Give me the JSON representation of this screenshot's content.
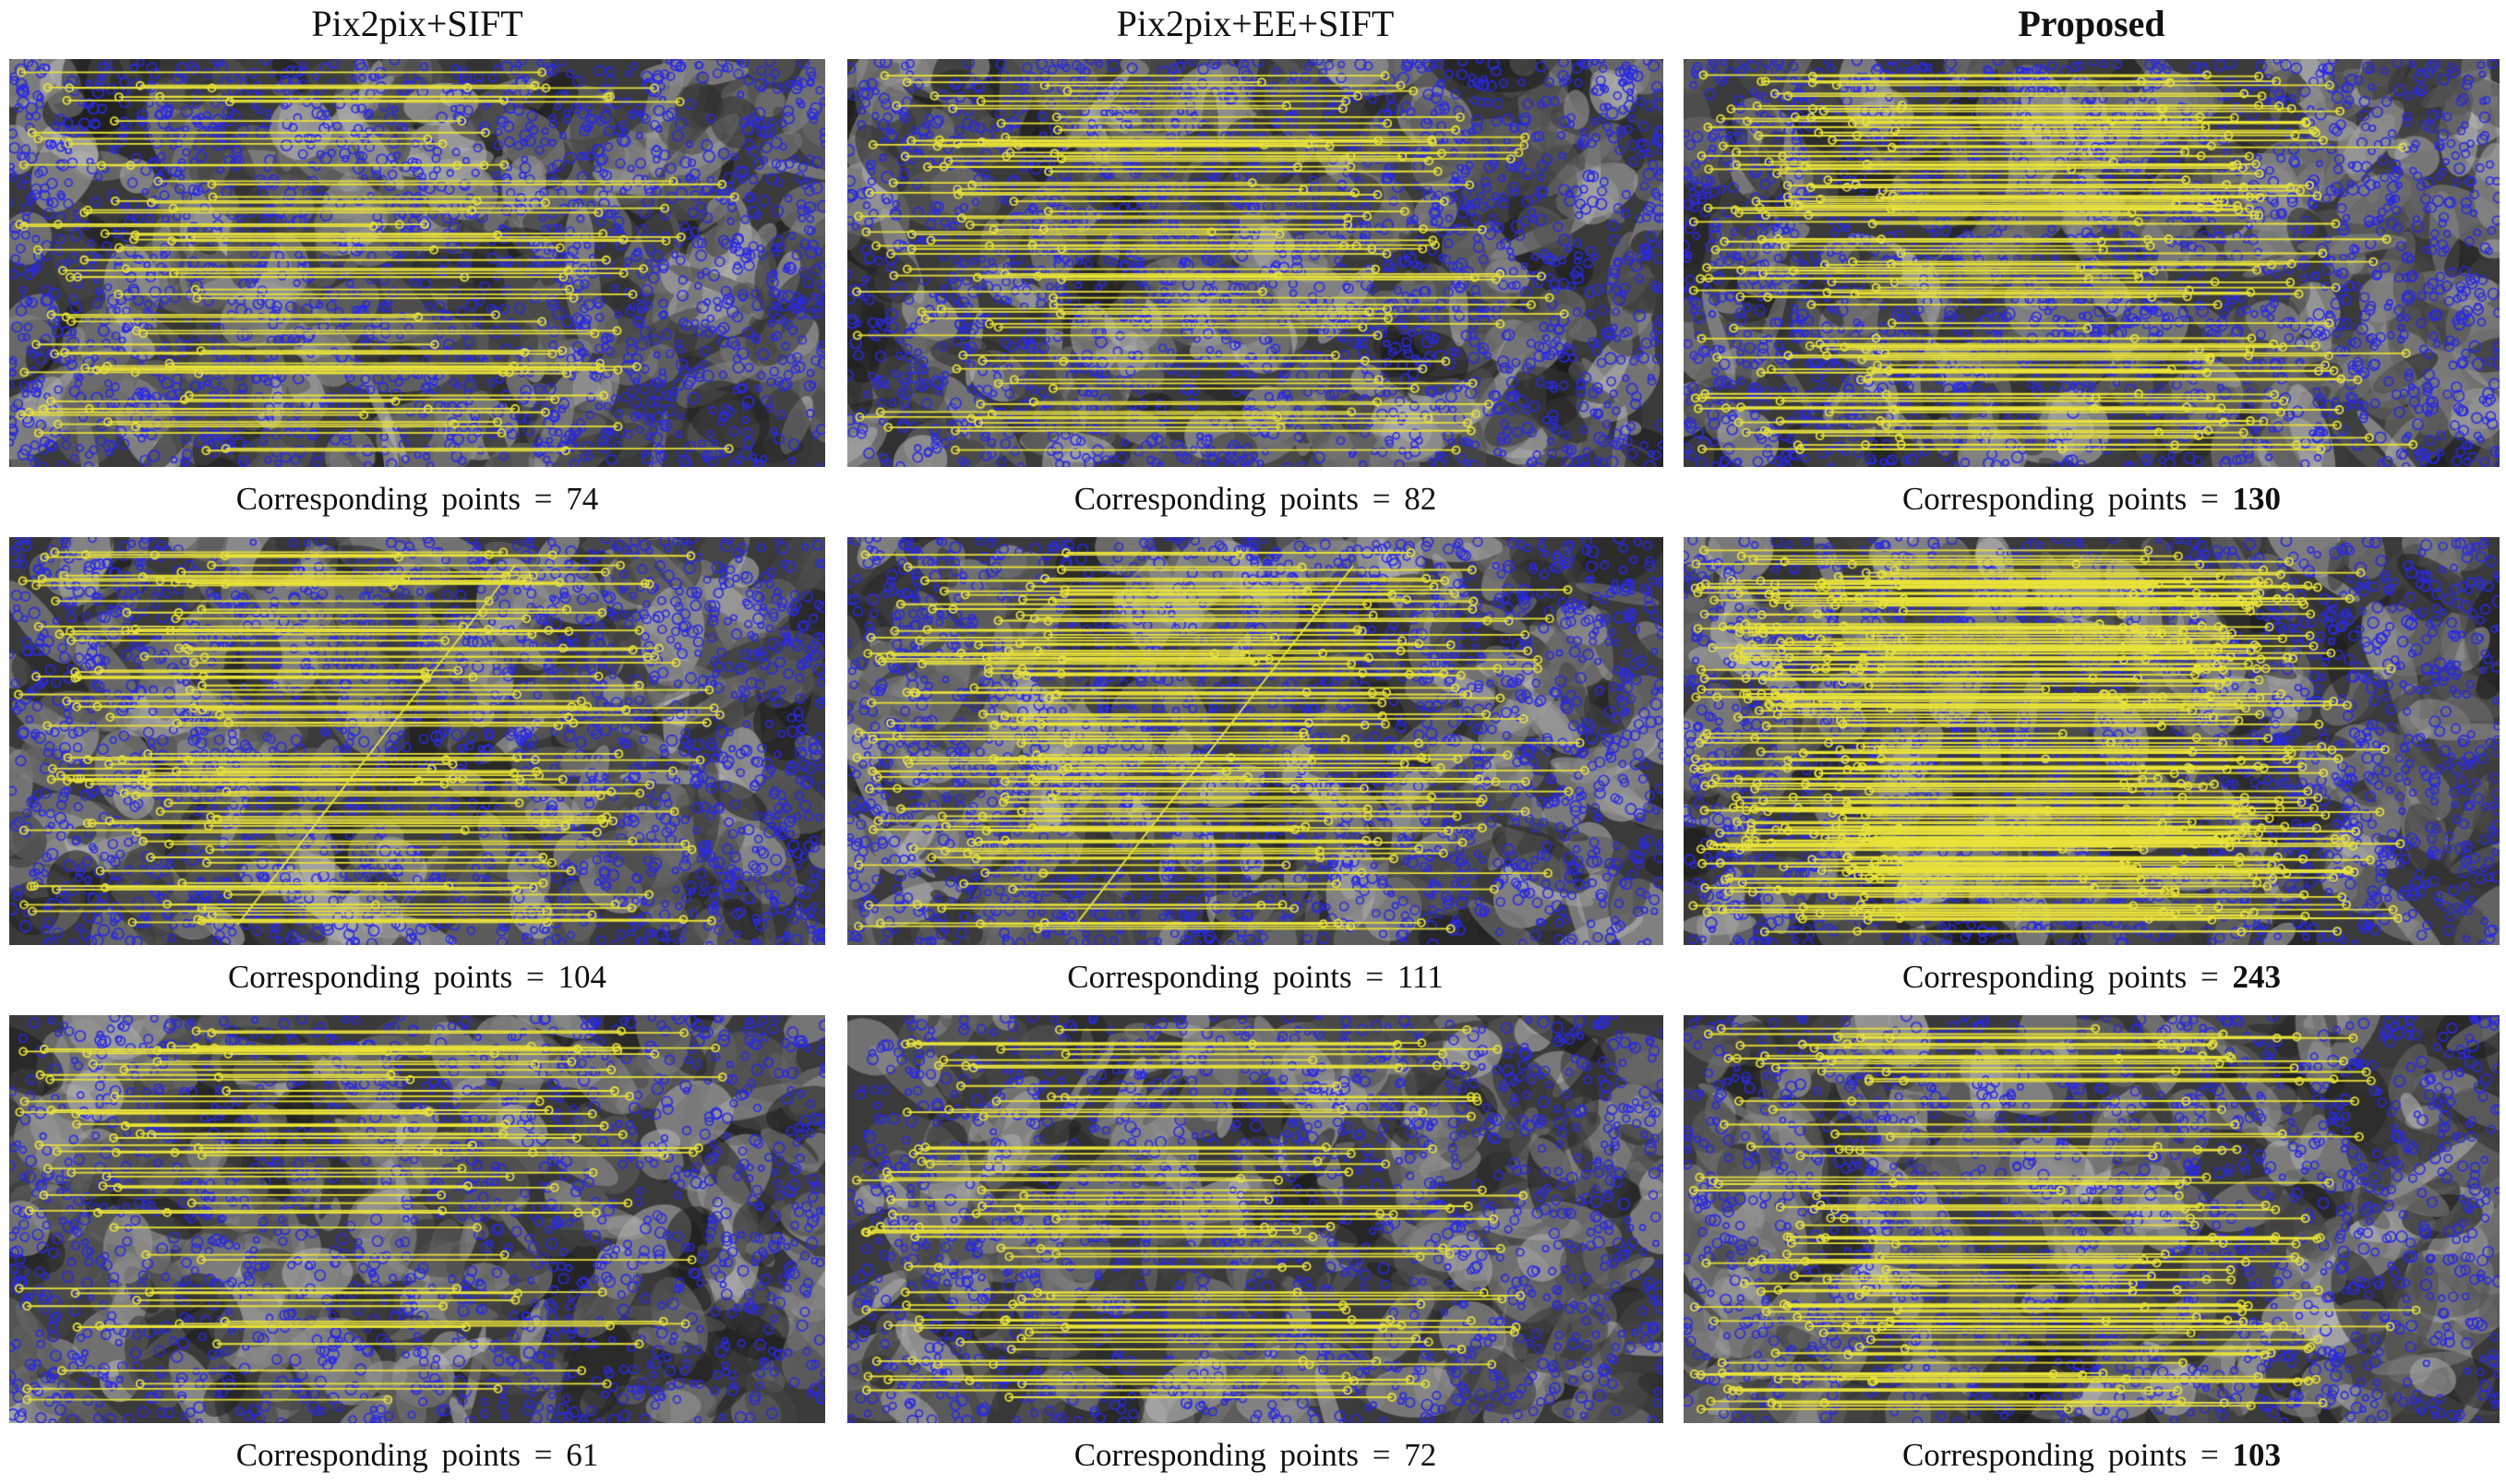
{
  "columns": [
    {
      "title": "Pix2pix+SIFT",
      "bold": false
    },
    {
      "title": "Pix2pix+EE+SIFT",
      "bold": false
    },
    {
      "title": "Proposed",
      "bold": true
    }
  ],
  "caption_label": "Corresponding points =",
  "rows": [
    {
      "panels": [
        {
          "count": "74",
          "count_bold": false,
          "seed": 11
        },
        {
          "count": "82",
          "count_bold": false,
          "seed": 12
        },
        {
          "count": "130",
          "count_bold": true,
          "seed": 13
        }
      ]
    },
    {
      "panels": [
        {
          "count": "104",
          "count_bold": false,
          "seed": 21
        },
        {
          "count": "111",
          "count_bold": false,
          "seed": 22
        },
        {
          "count": "243",
          "count_bold": true,
          "seed": 23
        }
      ]
    },
    {
      "panels": [
        {
          "count": "61",
          "count_bold": false,
          "seed": 31
        },
        {
          "count": "72",
          "count_bold": false,
          "seed": 32
        },
        {
          "count": "103",
          "count_bold": true,
          "seed": 33
        }
      ]
    }
  ],
  "colors": {
    "keypoint": "#2a2ae6",
    "match_line": "#e8e23a",
    "background": "#3a3a3a"
  }
}
